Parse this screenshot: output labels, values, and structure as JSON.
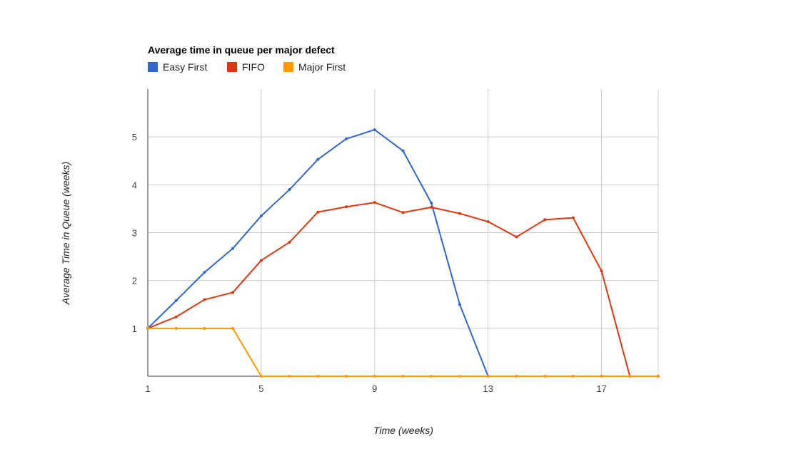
{
  "chart_data": {
    "type": "line",
    "title": "Average time in queue per major defect",
    "xlabel": "Time (weeks)",
    "ylabel": "Average Time in Queue (weeks)",
    "x": [
      1,
      2,
      3,
      4,
      5,
      6,
      7,
      8,
      9,
      10,
      11,
      12,
      13,
      14,
      15,
      16,
      17,
      18,
      19
    ],
    "xlim": [
      1,
      19
    ],
    "ylim": [
      0,
      6
    ],
    "xticks": [
      1,
      5,
      9,
      13,
      17
    ],
    "yticks": [
      1,
      2,
      3,
      4,
      5
    ],
    "grid": true,
    "legend": "top-left",
    "series": [
      {
        "name": "Easy First",
        "color": "#3366cc",
        "values": [
          1,
          1.58,
          2.17,
          2.67,
          3.35,
          3.9,
          4.53,
          4.96,
          5.15,
          4.71,
          3.62,
          1.5,
          0,
          0,
          0,
          0,
          0,
          0,
          0
        ]
      },
      {
        "name": "FIFO",
        "color": "#dc3912",
        "values": [
          1,
          1.24,
          1.6,
          1.75,
          2.42,
          2.8,
          3.43,
          3.54,
          3.63,
          3.42,
          3.53,
          3.4,
          3.23,
          2.91,
          3.27,
          3.31,
          2.2,
          0,
          0
        ]
      },
      {
        "name": "Major First",
        "color": "#ff9900",
        "values": [
          1,
          1,
          1,
          1,
          0,
          0,
          0,
          0,
          0,
          0,
          0,
          0,
          0,
          0,
          0,
          0,
          0,
          0,
          0
        ]
      }
    ]
  }
}
